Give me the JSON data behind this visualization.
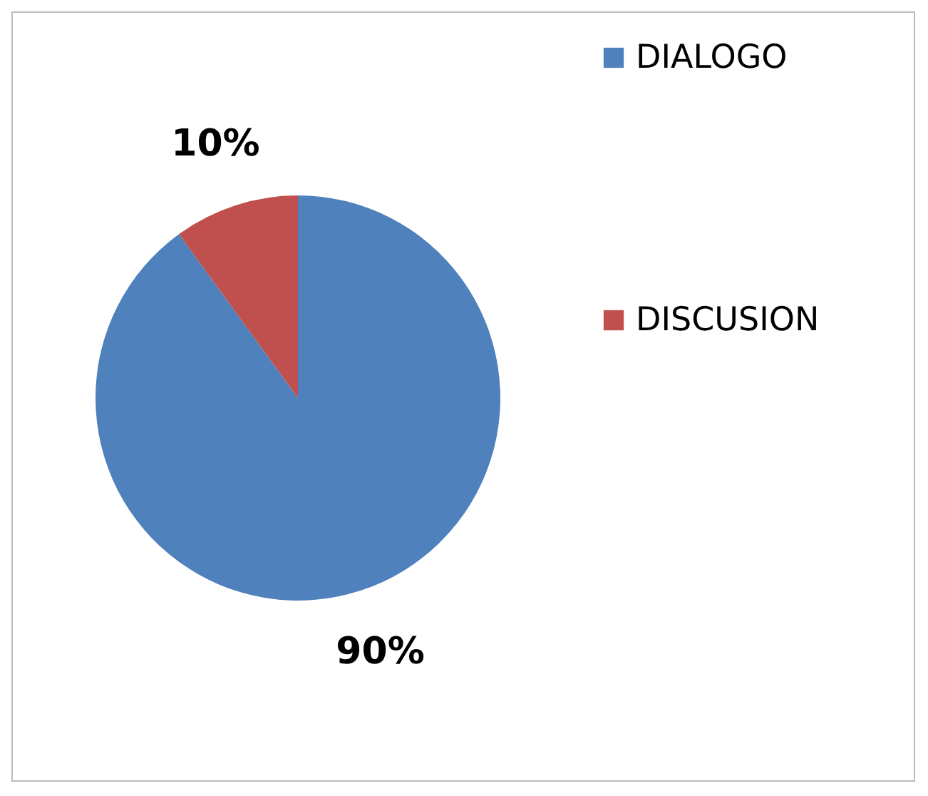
{
  "chart_data": {
    "type": "pie",
    "categories": [
      "DIALOGO",
      "DISCUSION"
    ],
    "values": [
      90,
      10
    ],
    "colors": [
      "#4f81bd",
      "#c0504d"
    ],
    "value_labels": [
      "90%",
      "10%"
    ],
    "legend": "right"
  }
}
